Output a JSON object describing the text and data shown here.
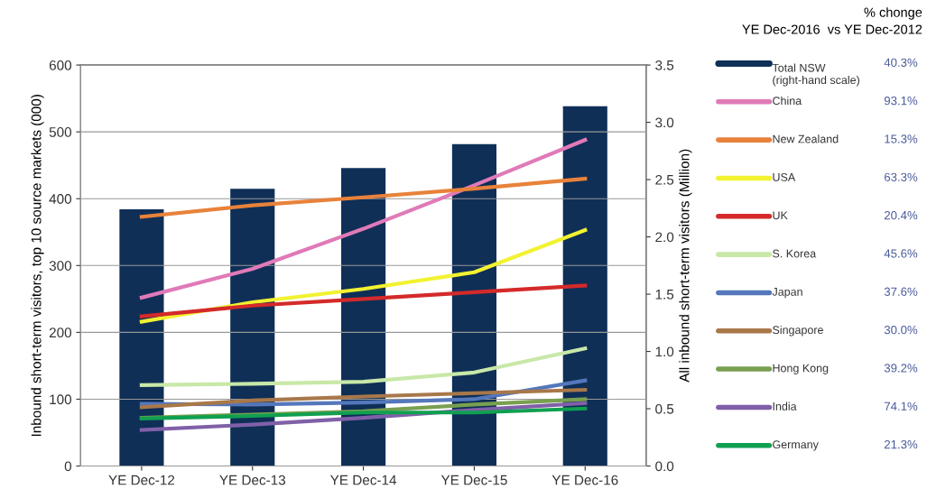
{
  "chart_data": {
    "type": "line",
    "categories": [
      "YE Dec-12",
      "YE Dec-13",
      "YE Dec-14",
      "YE Dec-15",
      "YE Dec-16"
    ],
    "ylabel": "Inbound short-term visitors, top 10 source markets (000)",
    "y2label": "All inbound short-term visitors (Million)",
    "ylim": [
      0,
      600
    ],
    "yticks": [
      0,
      100,
      200,
      300,
      400,
      500,
      600
    ],
    "y2lim": [
      0,
      3.5
    ],
    "y2ticks": [
      {
        "value": 0,
        "label": "0.0"
      },
      {
        "value": 0.5,
        "label": "0.5"
      },
      {
        "value": 1,
        "label": "1.0"
      },
      {
        "value": 1.5,
        "label": "1.5"
      },
      {
        "value": 2,
        "label": "2.0"
      },
      {
        "value": 2.5,
        "label": "2.5"
      },
      {
        "value": 3,
        "label": "3.0"
      },
      {
        "value": 3.5,
        "label": "3.5"
      }
    ],
    "grid": "y",
    "legend": "right",
    "legend_title": "% chonge\nYE Dec-2016  vs YE Dec-2012",
    "annotations": [
      "40.3%",
      "93.1%",
      "15.3%",
      "63.3%",
      "20.4%",
      "45.6%",
      "37.6%",
      "30.0%",
      "39.2%",
      "74.1%",
      "21.3%"
    ],
    "series": [
      {
        "name": "Total NSW\n(right-hand scale)",
        "type": "bar",
        "axis": "y2",
        "color": "#0f2f57",
        "values": [
          2.24,
          2.42,
          2.6,
          2.81,
          3.14
        ]
      },
      {
        "name": "China",
        "color": "#e07ab8",
        "values": [
          252,
          295,
          355,
          420,
          488
        ]
      },
      {
        "name": "New Zealand",
        "color": "#e8823a",
        "values": [
          373,
          390,
          402,
          415,
          430
        ]
      },
      {
        "name": "USA",
        "color": "#f2f230",
        "values": [
          216,
          245,
          265,
          290,
          353
        ]
      },
      {
        "name": "UK",
        "color": "#d42a2a",
        "values": [
          224,
          240,
          250,
          260,
          270
        ]
      },
      {
        "name": "S. Korea",
        "color": "#c8e8a8",
        "values": [
          121,
          123,
          126,
          140,
          176
        ]
      },
      {
        "name": "Japan",
        "color": "#5577bb",
        "values": [
          93,
          92,
          95,
          100,
          128
        ]
      },
      {
        "name": "Singapore",
        "color": "#a8784a",
        "values": [
          88,
          98,
          104,
          109,
          114
        ]
      },
      {
        "name": "Hong Kong",
        "color": "#78a050",
        "values": [
          72,
          77,
          82,
          92,
          100
        ]
      },
      {
        "name": "India",
        "color": "#8060a8",
        "values": [
          54,
          62,
          72,
          84,
          94
        ]
      },
      {
        "name": "Germany",
        "color": "#10a050",
        "values": [
          71,
          75,
          80,
          80,
          86
        ]
      }
    ]
  }
}
